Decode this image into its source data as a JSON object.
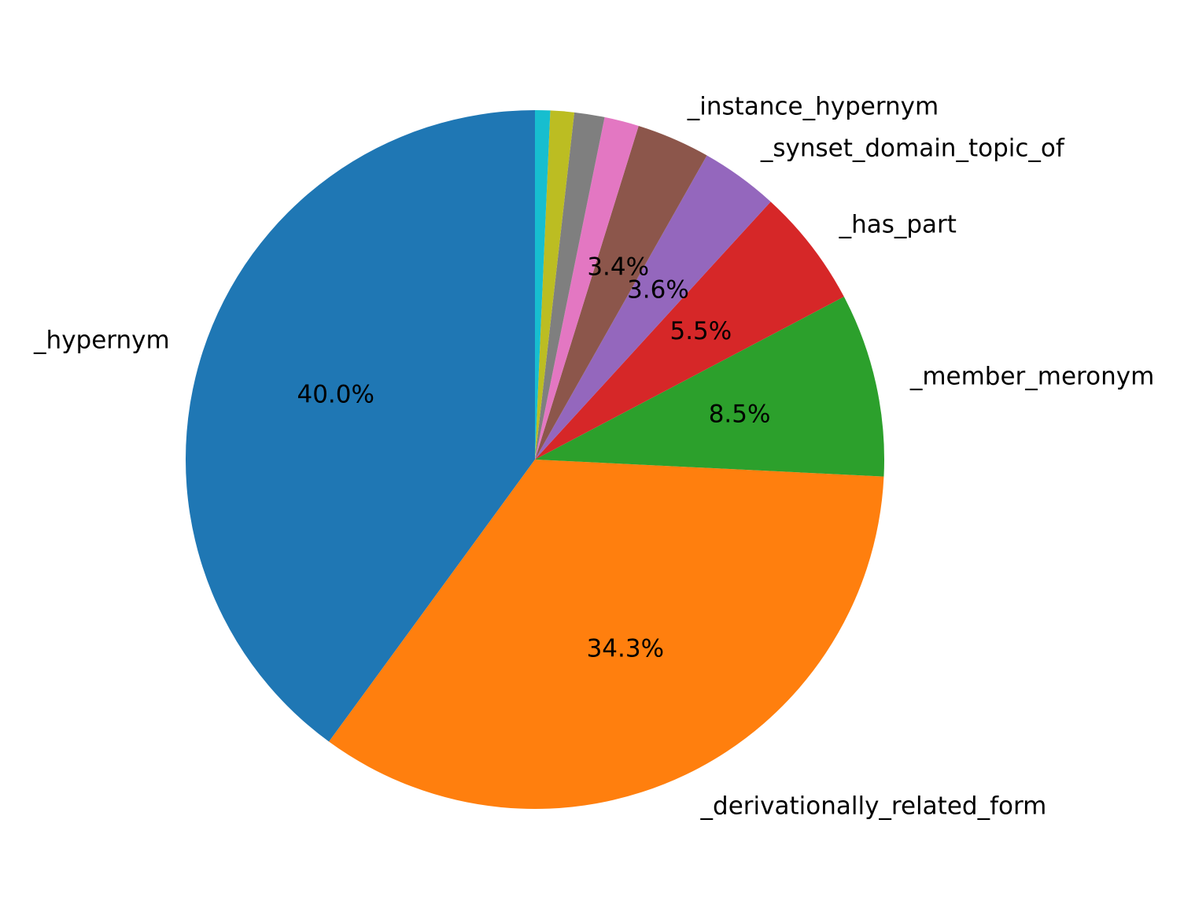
{
  "chart_data": {
    "type": "pie",
    "start_angle_deg": 90,
    "direction": "counterclockwise",
    "slices": [
      {
        "label": "_hypernym",
        "value": 40.0,
        "pct_label": "40.0%",
        "color": "#1f77b4"
      },
      {
        "label": "_derivationally_related_form",
        "value": 34.3,
        "pct_label": "34.3%",
        "color": "#ff7f0e"
      },
      {
        "label": "_member_meronym",
        "value": 8.5,
        "pct_label": "8.5%",
        "color": "#2ca02c"
      },
      {
        "label": "_has_part",
        "value": 5.5,
        "pct_label": "5.5%",
        "color": "#d62728"
      },
      {
        "label": "_synset_domain_topic_of",
        "value": 3.6,
        "pct_label": "3.6%",
        "color": "#9467bd"
      },
      {
        "label": "_instance_hypernym",
        "value": 3.4,
        "pct_label": "3.4%",
        "color": "#8c564b"
      },
      {
        "label": "",
        "value": 1.6,
        "pct_label": "",
        "color": "#e377c2"
      },
      {
        "label": "",
        "value": 1.4,
        "pct_label": "",
        "color": "#7f7f7f"
      },
      {
        "label": "",
        "value": 1.1,
        "pct_label": "",
        "color": "#bcbd22"
      },
      {
        "label": "",
        "value": 0.7,
        "pct_label": "",
        "color": "#17becf"
      }
    ]
  }
}
